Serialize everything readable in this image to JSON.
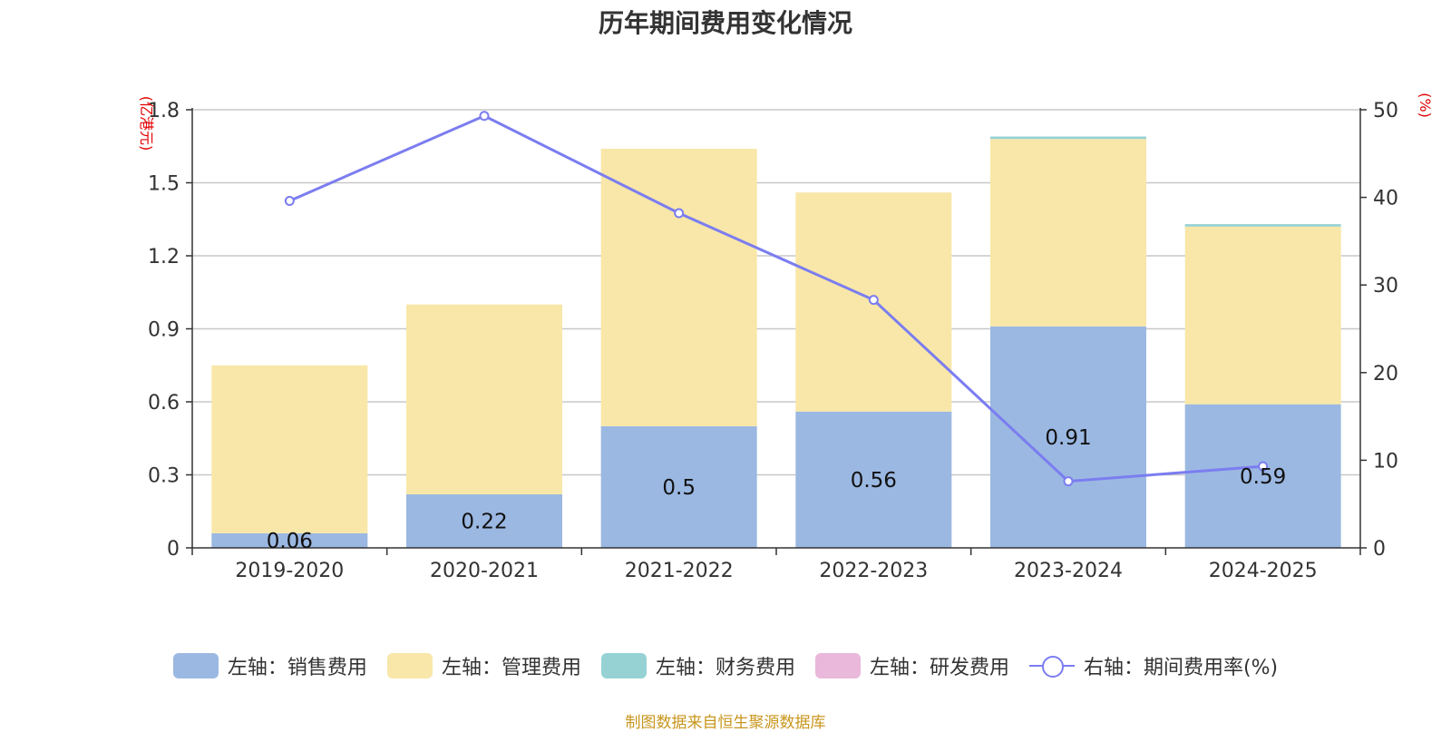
{
  "chart_data": {
    "type": "bar",
    "title": "历年期间费用变化情况",
    "categories": [
      "2019-2020",
      "2020-2021",
      "2021-2022",
      "2022-2023",
      "2023-2024",
      "2024-2025"
    ],
    "y_left": {
      "unit": "(亿港元)",
      "min": 0,
      "max": 1.8,
      "ticks": [
        "0",
        "0.3",
        "0.6",
        "0.9",
        "1.2",
        "1.5",
        "1.8"
      ]
    },
    "y_right": {
      "unit": "(%)",
      "min": 0,
      "max": 50,
      "ticks": [
        "0",
        "10",
        "20",
        "30",
        "40",
        "50"
      ]
    },
    "grid": true,
    "legend_position": "bottom",
    "series": [
      {
        "name": "左轴：销售费用",
        "type": "bar",
        "stack": "total",
        "color": "#9bb8e2",
        "values": [
          0.06,
          0.22,
          0.5,
          0.56,
          0.91,
          0.59
        ],
        "labels": [
          "0.06",
          "0.22",
          "0.5",
          "0.56",
          "0.91",
          "0.59"
        ]
      },
      {
        "name": "左轴：管理费用",
        "type": "bar",
        "stack": "total",
        "color": "#f8e7a8",
        "values": [
          0.69,
          0.78,
          1.14,
          0.9,
          0.77,
          0.73
        ]
      },
      {
        "name": "左轴：财务费用",
        "type": "bar",
        "stack": "total",
        "color": "#96d2d4",
        "values": [
          0,
          0,
          0,
          0,
          0.01,
          0.01
        ]
      },
      {
        "name": "左轴：研发费用",
        "type": "bar",
        "stack": "total",
        "color": "#e9b8da",
        "values": [
          0,
          0,
          0,
          0,
          0,
          0
        ]
      },
      {
        "name": "右轴：期间费用率(%)",
        "type": "line",
        "axis": "right",
        "color": "#7b7df0",
        "values": [
          39.6,
          49.3,
          38.2,
          28.3,
          7.6,
          9.3
        ]
      }
    ],
    "source": "制图数据来自恒生聚源数据库"
  }
}
